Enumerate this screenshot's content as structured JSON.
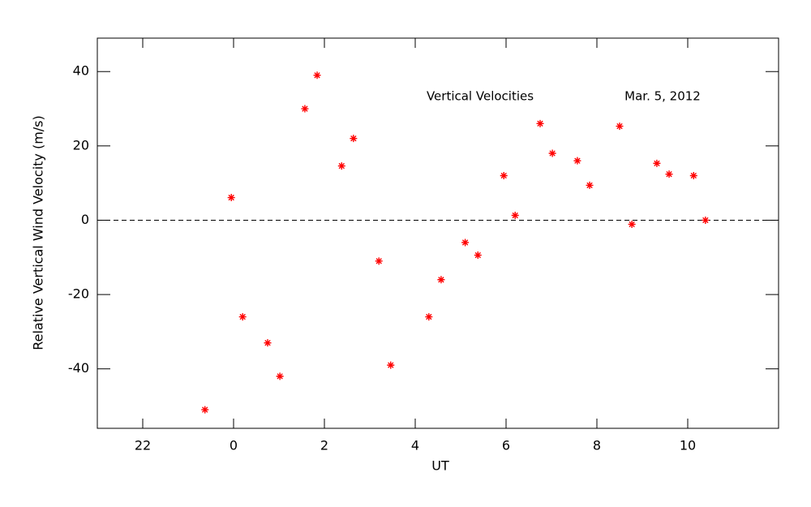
{
  "chart_data": {
    "type": "scatter",
    "xlabel": "UT",
    "ylabel": "Relative Vertical Wind Velocity (m/s)",
    "annotations": [
      "Vertical Velocities",
      "Mar. 5, 2012"
    ],
    "color": "#ff0000",
    "reference_line": 0,
    "xlim": [
      -3,
      12
    ],
    "ylim": [
      -56,
      49
    ],
    "xticks": [
      {
        "value": -2,
        "label": "22"
      },
      0,
      2,
      4,
      6,
      8,
      10
    ],
    "yticks": [
      -40,
      -20,
      0,
      20,
      40
    ],
    "x": [
      -0.63,
      -0.05,
      0.2,
      0.75,
      1.02,
      1.57,
      1.84,
      2.38,
      2.64,
      3.2,
      3.46,
      4.3,
      4.57,
      5.1,
      5.38,
      5.95,
      6.2,
      6.75,
      7.02,
      7.57,
      7.84,
      8.5,
      8.77,
      9.32,
      9.59,
      10.13,
      10.39
    ],
    "values": [
      -51,
      6.1,
      -26,
      -33,
      -42,
      30,
      39,
      14.6,
      22,
      -11,
      -39,
      -26,
      -16,
      -6,
      -9.4,
      12,
      1.3,
      26,
      18,
      16,
      9.4,
      25.3,
      -1.1,
      15.3,
      12.4,
      12,
      0
    ]
  }
}
